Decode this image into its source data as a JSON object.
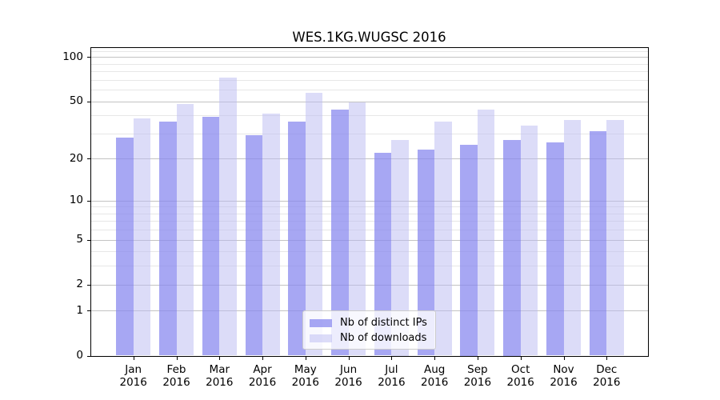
{
  "chart_data": {
    "type": "bar",
    "title": "WES.1KG.WUGSC 2016",
    "categories": [
      "Jan",
      "Feb",
      "Mar",
      "Apr",
      "May",
      "Jun",
      "Jul",
      "Aug",
      "Sep",
      "Oct",
      "Nov",
      "Dec"
    ],
    "year": "2016",
    "series": [
      {
        "name": "Nb of distinct IPs",
        "color": "rgba(138,138,239,0.75)",
        "values": [
          28,
          36,
          39,
          29,
          36,
          44,
          22,
          23,
          25,
          27,
          26,
          31
        ]
      },
      {
        "name": "Nb of downloads",
        "color": "rgba(185,185,241,0.5)",
        "values": [
          38,
          48,
          72,
          41,
          57,
          49,
          27,
          36,
          44,
          34,
          37,
          37
        ]
      }
    ],
    "xlabel": "",
    "ylabel": "",
    "yscale": "log1p",
    "ylim": [
      0,
      115.7
    ],
    "yticks": [
      100,
      50,
      20,
      10,
      5,
      2,
      1,
      0
    ],
    "major_gridlines": [
      1,
      2,
      5,
      10,
      20,
      50,
      100
    ],
    "minor_gridlines": [
      3,
      4,
      6,
      7,
      8,
      9,
      30,
      40,
      60,
      70,
      80,
      90,
      110
    ],
    "grid": true,
    "legend_position": "lower center"
  },
  "colors": {
    "grid_major": "#c3c3c3",
    "grid_minor": "#e7e7e7",
    "axis": "#000000",
    "legend_border": "#cccccc",
    "legend_background": "rgba(255,255,255,0.8)"
  }
}
